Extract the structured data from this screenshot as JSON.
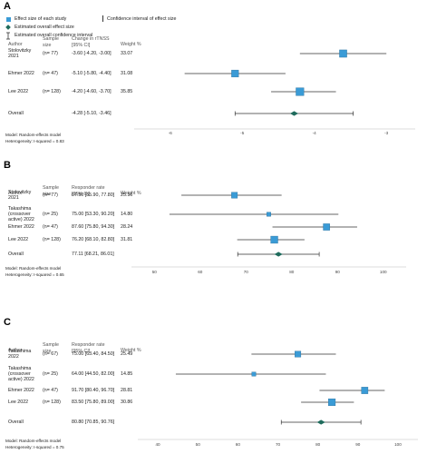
{
  "legend": {
    "effect_size_each": "Effect size of each study",
    "ci_effect_size": "Confidence interval of effect size",
    "estimated_overall": "Estimated overall effect size",
    "estimated_overall_ci": "Estimated overall confidence interval"
  },
  "colors": {
    "study_marker": "#3a9bd6",
    "overall_diamond": "#1f6b5c",
    "line": "#333333"
  },
  "chart_data": [
    {
      "panel": "A",
      "type": "forest",
      "headers": {
        "author": "Author",
        "sample": "Sample size",
        "effect": "Change in rTNSS [95% CI]",
        "weight": "Weight %"
      },
      "studies": [
        {
          "author_lines": [
            "Stolovitzky",
            "2021"
          ],
          "n": "(n= 77)",
          "ci_text": "-3.60 [-4.20, -3.00]",
          "weight": "33.07",
          "est": -3.6,
          "lo": -4.2,
          "hi": -3.0,
          "wt": 33.07
        },
        {
          "author_lines": [
            "Ehmer 2022"
          ],
          "n": "(n= 47)",
          "ci_text": "-5.10 [-5.80, -4.40]",
          "weight": "31.08",
          "est": -5.1,
          "lo": -5.8,
          "hi": -4.4,
          "wt": 31.08
        },
        {
          "author_lines": [
            "Lee 2022"
          ],
          "n": "(n= 128)",
          "ci_text": "-4.20 [-4.60, -3.70]",
          "weight": "35.85",
          "est": -4.2,
          "lo": -4.6,
          "hi": -3.7,
          "wt": 35.85
        }
      ],
      "overall": {
        "label": "Overall",
        "ci_text": "-4.28 [-5.10, -3.46]",
        "est": -4.28,
        "lo": -5.1,
        "hi": -3.46
      },
      "model": "Model: Random-effects model",
      "heterogeneity": "Heterogeneity: I-squared = 0.83",
      "xlim": [
        -6.5,
        -2.6
      ],
      "ticks": [
        -6,
        -5,
        -4,
        -3
      ],
      "tick_labels": [
        "-6",
        "-5",
        "-4",
        "-3"
      ]
    },
    {
      "panel": "B",
      "type": "forest",
      "headers": {
        "author": "Author",
        "sample": "Sample size",
        "effect": "Responder rate [95% CI]",
        "weight": "Weight %"
      },
      "studies": [
        {
          "author_lines": [
            "Stolovitzky",
            "2021"
          ],
          "n": "(n= 77)",
          "ci_text": "67.50 [55.90, 77.80]",
          "weight": "25.16",
          "est": 67.5,
          "lo": 55.9,
          "hi": 77.8,
          "wt": 25.16
        },
        {
          "author_lines": [
            "Takashima",
            "(crossover",
            "active) 2022"
          ],
          "n": "(n= 25)",
          "ci_text": "75.00 [53.30, 90.20]",
          "weight": "14.80",
          "est": 75.0,
          "lo": 53.3,
          "hi": 90.2,
          "wt": 14.8
        },
        {
          "author_lines": [
            "Ehmer 2022"
          ],
          "n": "(n= 47)",
          "ci_text": "87.60 [75.80, 94.30]",
          "weight": "28.24",
          "est": 87.6,
          "lo": 75.8,
          "hi": 94.3,
          "wt": 28.24
        },
        {
          "author_lines": [
            "Lee 2022"
          ],
          "n": "(n= 128)",
          "ci_text": "76.20 [68.10, 82.80]",
          "weight": "31.81",
          "est": 76.2,
          "lo": 68.1,
          "hi": 82.8,
          "wt": 31.81
        }
      ],
      "overall": {
        "label": "Overall",
        "ci_text": "77.11 [68.21, 86.01]",
        "est": 77.11,
        "lo": 68.21,
        "hi": 86.01
      },
      "model": "Model: Random-effects model",
      "heterogeneity": "Heterogeneity: I-squared = 0.65",
      "xlim": [
        45,
        105
      ],
      "ticks": [
        50,
        60,
        70,
        80,
        90,
        100
      ],
      "tick_labels": [
        "50",
        "60",
        "70",
        "80",
        "90",
        "100"
      ]
    },
    {
      "panel": "C",
      "type": "forest",
      "headers": {
        "author": "Author",
        "sample": "Sample size",
        "effect": "Responder rate [95% CI]",
        "weight": "Weight %"
      },
      "studies": [
        {
          "author_lines": [
            "Takashima",
            "2022"
          ],
          "n": "(n= 67)",
          "ci_text": "75.00 [63.40, 84.50]",
          "weight": "25.49",
          "est": 75.0,
          "lo": 63.4,
          "hi": 84.5,
          "wt": 25.49
        },
        {
          "author_lines": [
            "Takashima",
            "(crossover",
            "active) 2022"
          ],
          "n": "(n= 25)",
          "ci_text": "64.00 [44.50, 82.00]",
          "weight": "14.85",
          "est": 64.0,
          "lo": 44.5,
          "hi": 82.0,
          "wt": 14.85
        },
        {
          "author_lines": [
            "Ehmer 2022"
          ],
          "n": "(n= 47)",
          "ci_text": "91.70 [80.40, 96.70]",
          "weight": "28.81",
          "est": 91.7,
          "lo": 80.4,
          "hi": 96.7,
          "wt": 28.81
        },
        {
          "author_lines": [
            "Lee 2022"
          ],
          "n": "(n= 128)",
          "ci_text": "83.50 [75.80, 89.00]",
          "weight": "30.86",
          "est": 83.5,
          "lo": 75.8,
          "hi": 89.0,
          "wt": 30.86
        }
      ],
      "overall": {
        "label": "Overall",
        "ci_text": "80.80 [70.85, 90.76]",
        "est": 80.8,
        "lo": 70.85,
        "hi": 90.76
      },
      "model": "Model: Random-effects model",
      "heterogeneity": "Heterogeneity: I-squared = 0.75",
      "xlim": [
        35,
        105
      ],
      "ticks": [
        40,
        50,
        60,
        70,
        80,
        90,
        100
      ],
      "tick_labels": [
        "40",
        "50",
        "60",
        "70",
        "80",
        "90",
        "100"
      ]
    }
  ]
}
